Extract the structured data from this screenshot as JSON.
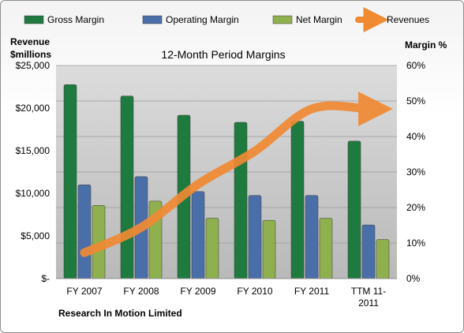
{
  "chart_data": {
    "type": "bar",
    "title": "12-Month Period Margins",
    "footnote": "Research In Motion Limited",
    "y_left_label": [
      "Revenue",
      "$millions"
    ],
    "y_right_label": "Margin %",
    "categories": [
      [
        "FY 2007"
      ],
      [
        "FY 2008"
      ],
      [
        "FY 2009"
      ],
      [
        "FY 2010"
      ],
      [
        "FY 2011"
      ],
      [
        "TTM 11-",
        "2011"
      ]
    ],
    "y_left_ticks": [
      "$-",
      "$5,000",
      "$10,000",
      "$15,000",
      "$20,000",
      "$25,000"
    ],
    "y_left_range": [
      0,
      25000
    ],
    "y_right_ticks": [
      "0%",
      "10%",
      "20%",
      "30%",
      "40%",
      "50%",
      "60%"
    ],
    "y_right_range": [
      0,
      60
    ],
    "grid": true,
    "legend_position": "top",
    "series": [
      {
        "name": "Gross Margin",
        "axis": "right",
        "kind": "bar",
        "color": "#1f7a40",
        "values": [
          54.6,
          51.4,
          46.0,
          44.0,
          44.3,
          38.7
        ]
      },
      {
        "name": "Operating Margin",
        "axis": "right",
        "kind": "bar",
        "color": "#4a6fa8",
        "values": [
          26.4,
          28.7,
          24.5,
          23.4,
          23.4,
          15.1
        ]
      },
      {
        "name": "Net Margin",
        "axis": "right",
        "kind": "bar",
        "color": "#8fb04e",
        "values": [
          20.6,
          21.8,
          17.0,
          16.4,
          17.0,
          11.0
        ]
      },
      {
        "name": "Revenues",
        "axis": "left",
        "kind": "line",
        "color": "#f08a33",
        "values": [
          3037,
          6009,
          11065,
          14953,
          19907,
          19907
        ]
      }
    ]
  }
}
